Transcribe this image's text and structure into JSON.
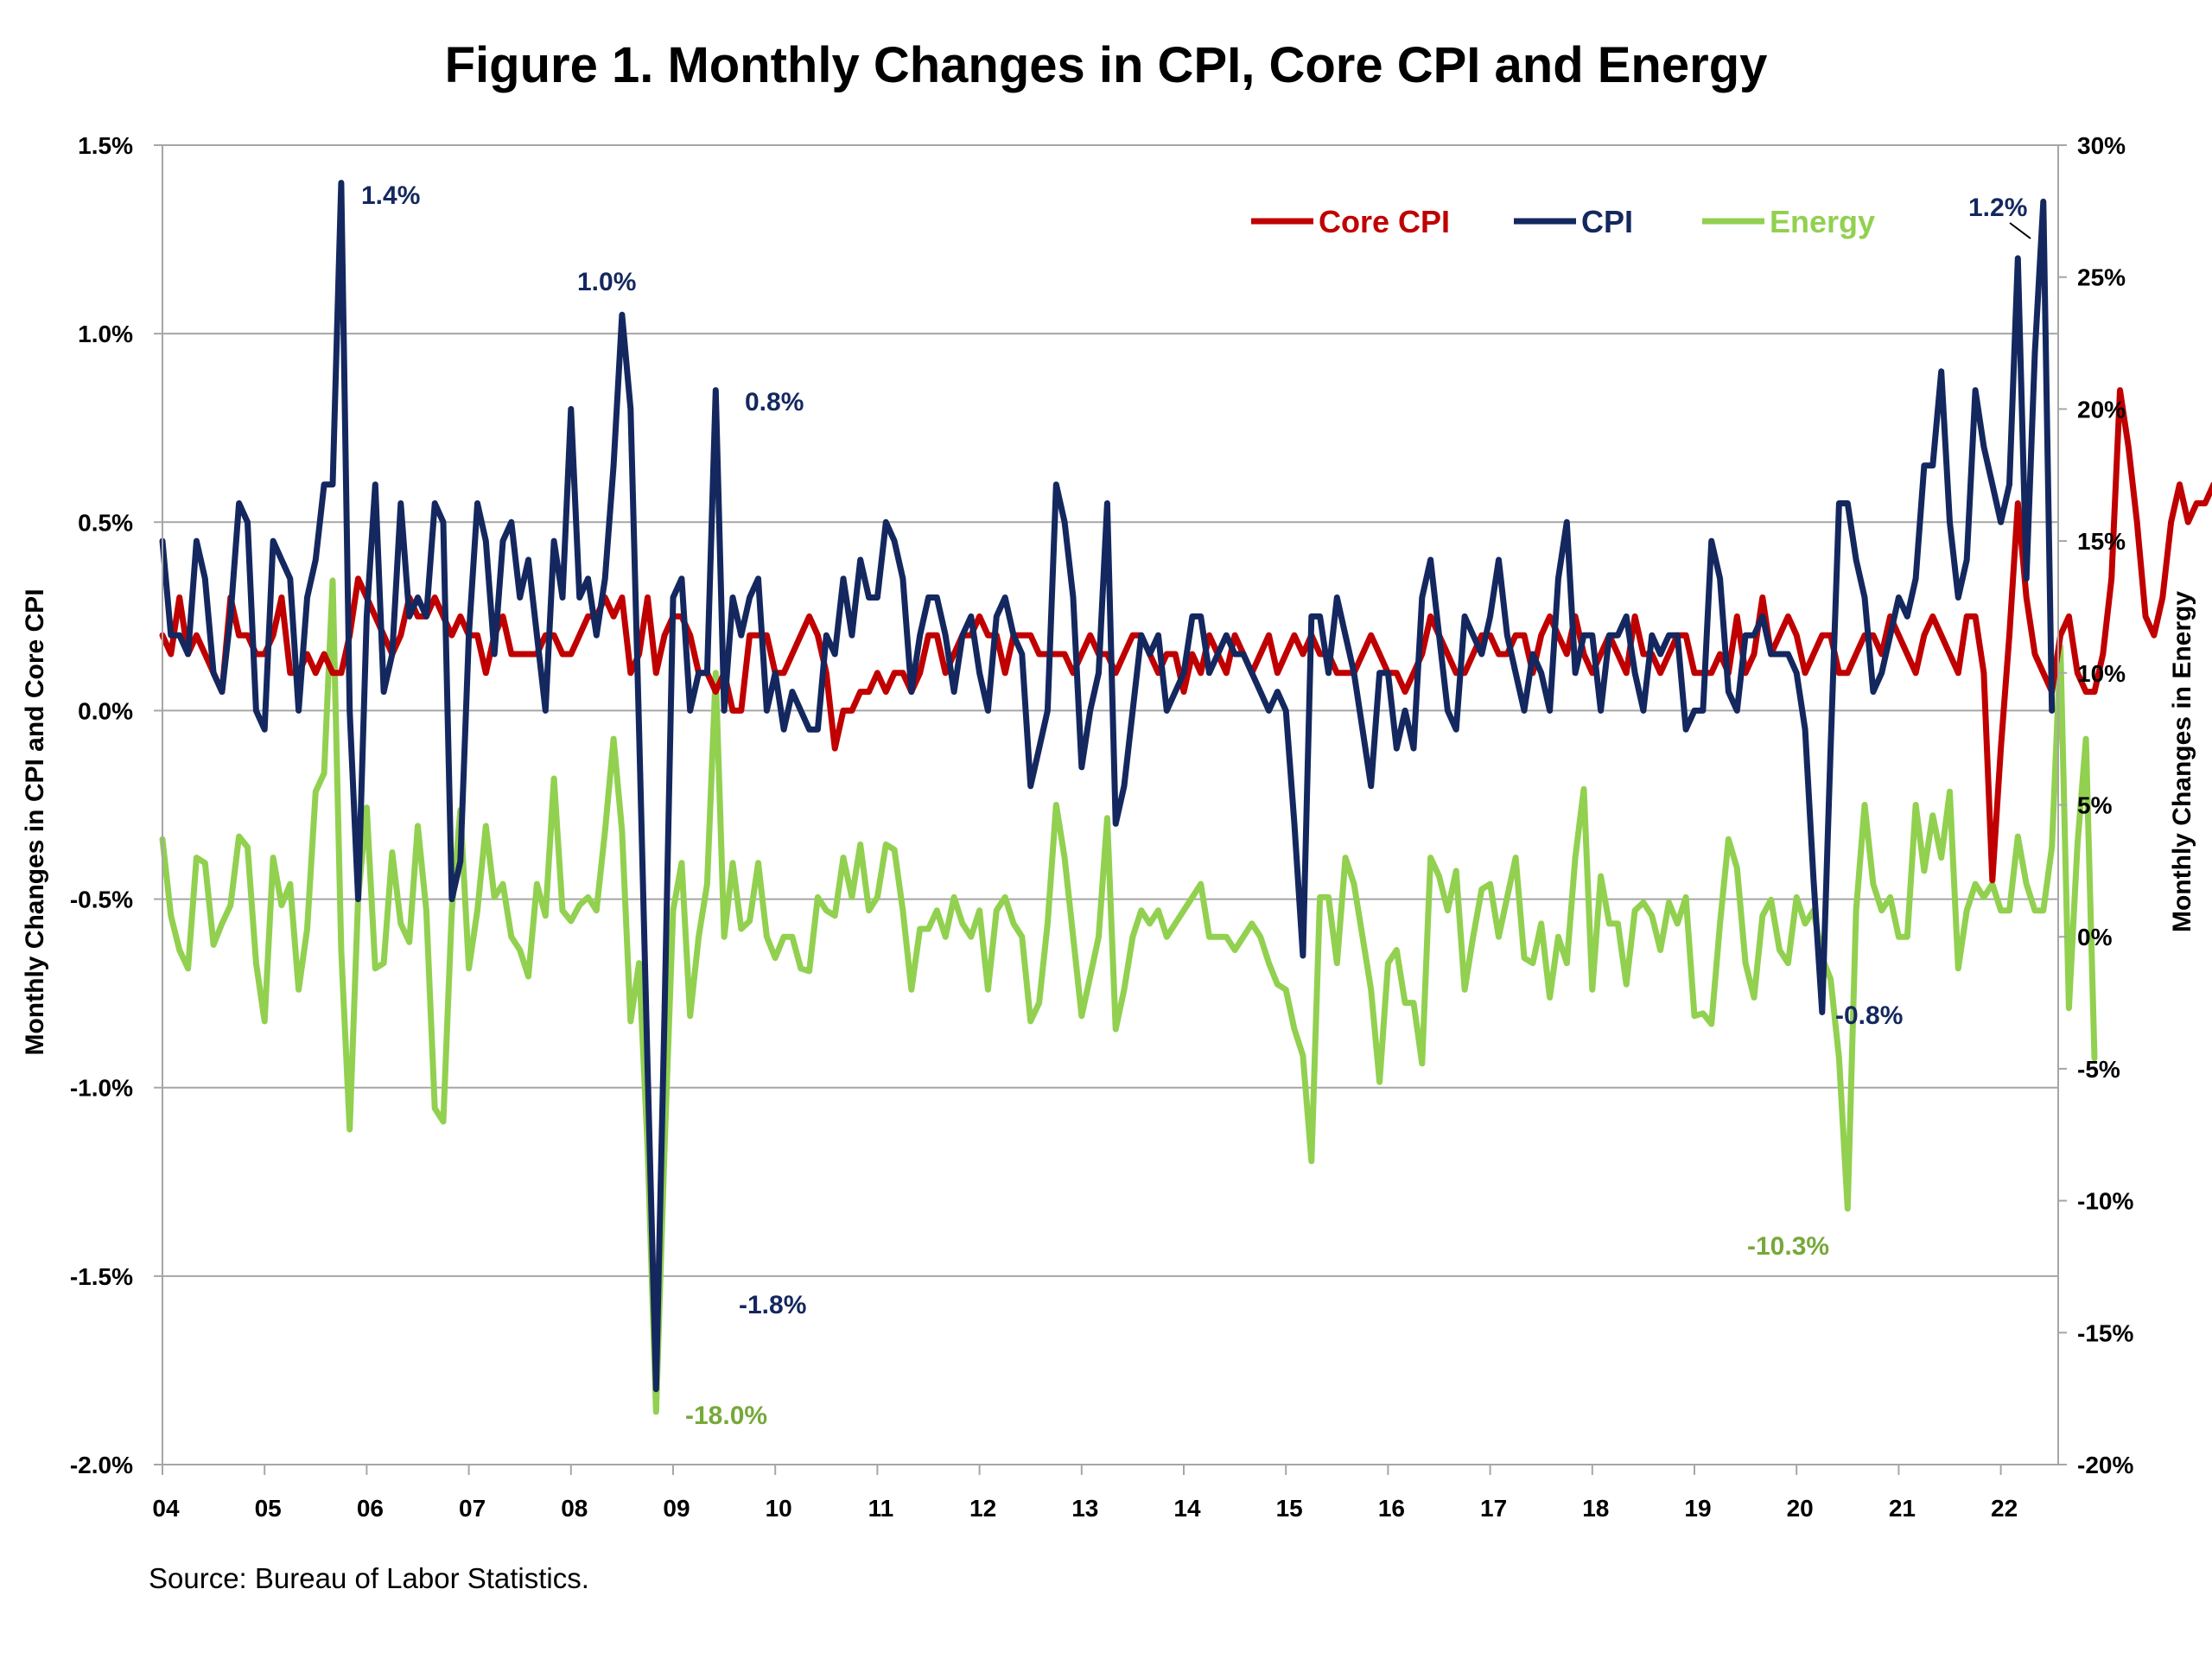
{
  "title": "Figure 1. Monthly Changes in CPI, Core CPI and Energy",
  "source": "Source: Bureau of Labor Statistics.",
  "colors": {
    "core": "#c00000",
    "cpi": "#14285f",
    "energy": "#92d050",
    "energy_label": "#77a83a",
    "grid": "#a6a6a6"
  },
  "chart_data": {
    "type": "line",
    "x_tick_labels": [
      "04",
      "05",
      "06",
      "07",
      "08",
      "09",
      "10",
      "11",
      "12",
      "13",
      "14",
      "15",
      "16",
      "17",
      "18",
      "19",
      "20",
      "21",
      "22"
    ],
    "x_range": [
      "2004-01",
      "2022-07"
    ],
    "ylabel": "Monthly Changes in CPI and Core CPI",
    "y2label": "Monthly Changes in Energy",
    "ylim": [
      -2.0,
      1.5
    ],
    "y2lim": [
      -20,
      30
    ],
    "y_ticks": [
      "1.5%",
      "1.0%",
      "0.5%",
      "0.0%",
      "-0.5%",
      "-1.0%",
      "-1.5%",
      "-2.0%"
    ],
    "y2_ticks": [
      "30%",
      "25%",
      "20%",
      "15%",
      "10%",
      "5%",
      "0%",
      "-5%",
      "-10%",
      "-15%",
      "-20%"
    ],
    "grid": "horizontal",
    "legend_position": "top-right",
    "series": [
      {
        "name": "Core CPI",
        "axis": "left",
        "values": [
          0.2,
          0.15,
          0.3,
          0.15,
          0.2,
          0.15,
          0.1,
          0.05,
          0.3,
          0.2,
          0.2,
          0.15,
          0.15,
          0.2,
          0.3,
          0.1,
          0.1,
          0.15,
          0.1,
          0.15,
          0.1,
          0.1,
          0.2,
          0.35,
          0.3,
          0.25,
          0.2,
          0.15,
          0.2,
          0.3,
          0.25,
          0.25,
          0.3,
          0.25,
          0.2,
          0.25,
          0.2,
          0.2,
          0.1,
          0.2,
          0.25,
          0.15,
          0.15,
          0.15,
          0.15,
          0.2,
          0.2,
          0.15,
          0.15,
          0.2,
          0.25,
          0.25,
          0.3,
          0.25,
          0.3,
          0.1,
          0.15,
          0.3,
          0.1,
          0.2,
          0.25,
          0.25,
          0.2,
          0.1,
          0.1,
          0.05,
          0.1,
          0.0,
          0.0,
          0.2,
          0.2,
          0.2,
          0.1,
          0.1,
          0.15,
          0.2,
          0.25,
          0.2,
          0.1,
          -0.1,
          0.0,
          0.0,
          0.05,
          0.05,
          0.1,
          0.05,
          0.1,
          0.1,
          0.05,
          0.1,
          0.2,
          0.2,
          0.1,
          0.15,
          0.2,
          0.2,
          0.25,
          0.2,
          0.2,
          0.1,
          0.2,
          0.2,
          0.2,
          0.15,
          0.15,
          0.15,
          0.15,
          0.1,
          0.15,
          0.2,
          0.15,
          0.15,
          0.1,
          0.15,
          0.2,
          0.2,
          0.15,
          0.1,
          0.15,
          0.15,
          0.05,
          0.15,
          0.1,
          0.2,
          0.15,
          0.1,
          0.2,
          0.15,
          0.1,
          0.15,
          0.2,
          0.1,
          0.15,
          0.2,
          0.15,
          0.2,
          0.15,
          0.15,
          0.1,
          0.1,
          0.1,
          0.15,
          0.2,
          0.15,
          0.1,
          0.1,
          0.05,
          0.1,
          0.15,
          0.25,
          0.2,
          0.15,
          0.1,
          0.1,
          0.15,
          0.2,
          0.2,
          0.15,
          0.15,
          0.2,
          0.2,
          0.1,
          0.2,
          0.25,
          0.2,
          0.15,
          0.25,
          0.15,
          0.1,
          0.15,
          0.2,
          0.15,
          0.1,
          0.25,
          0.15,
          0.15,
          0.1,
          0.15,
          0.2,
          0.2,
          0.1,
          0.1,
          0.1,
          0.15,
          0.1,
          0.25,
          0.1,
          0.15,
          0.3,
          0.15,
          0.2,
          0.25,
          0.2,
          0.1,
          0.15,
          0.2,
          0.2,
          0.1,
          0.1,
          0.15,
          0.2,
          0.2,
          0.15,
          0.25,
          0.2,
          0.15,
          0.1,
          0.2,
          0.25,
          0.2,
          0.15,
          0.1,
          0.25,
          0.25,
          0.1,
          -0.45,
          -0.1,
          0.2,
          0.55,
          0.3,
          0.15,
          0.1,
          0.05,
          0.2,
          0.25,
          0.1,
          0.05,
          0.05,
          0.15,
          0.35,
          0.85,
          0.7,
          0.5,
          0.25,
          0.2,
          0.3,
          0.5,
          0.6,
          0.5,
          0.55,
          0.55,
          0.6,
          0.5,
          0.3,
          0.6,
          0.65,
          0.7,
          0.3
        ]
      },
      {
        "name": "CPI",
        "axis": "left",
        "values": [
          0.45,
          0.2,
          0.2,
          0.15,
          0.45,
          0.35,
          0.1,
          0.05,
          0.25,
          0.55,
          0.5,
          0.0,
          -0.05,
          0.45,
          0.4,
          0.35,
          0.0,
          0.3,
          0.4,
          0.6,
          0.6,
          1.4,
          0.0,
          -0.5,
          0.25,
          0.6,
          0.05,
          0.15,
          0.55,
          0.25,
          0.3,
          0.25,
          0.55,
          0.5,
          -0.5,
          -0.4,
          0.2,
          0.55,
          0.45,
          0.15,
          0.45,
          0.5,
          0.3,
          0.4,
          0.2,
          0.0,
          0.45,
          0.3,
          0.8,
          0.3,
          0.35,
          0.2,
          0.35,
          0.65,
          1.05,
          0.8,
          -0.05,
          -0.95,
          -1.8,
          -0.8,
          0.3,
          0.35,
          0.0,
          0.1,
          0.1,
          0.85,
          0.0,
          0.3,
          0.2,
          0.3,
          0.35,
          0.0,
          0.1,
          -0.05,
          0.05,
          0.0,
          -0.05,
          -0.05,
          0.2,
          0.15,
          0.35,
          0.2,
          0.4,
          0.3,
          0.3,
          0.5,
          0.45,
          0.35,
          0.05,
          0.2,
          0.3,
          0.3,
          0.2,
          0.05,
          0.2,
          0.25,
          0.1,
          0.0,
          0.25,
          0.3,
          0.2,
          0.15,
          -0.2,
          -0.1,
          0.0,
          0.6,
          0.5,
          0.3,
          -0.15,
          0.0,
          0.1,
          0.55,
          -0.3,
          -0.2,
          0.0,
          0.2,
          0.15,
          0.2,
          0.0,
          0.05,
          0.1,
          0.25,
          0.25,
          0.1,
          0.15,
          0.2,
          0.15,
          0.15,
          0.1,
          0.05,
          0.0,
          0.05,
          0.0,
          -0.3,
          -0.65,
          0.25,
          0.25,
          0.1,
          0.3,
          0.2,
          0.1,
          -0.05,
          -0.2,
          0.1,
          0.1,
          -0.1,
          0.0,
          -0.1,
          0.3,
          0.4,
          0.2,
          0.0,
          -0.05,
          0.25,
          0.2,
          0.15,
          0.25,
          0.4,
          0.2,
          0.1,
          0.0,
          0.15,
          0.1,
          0.0,
          0.35,
          0.5,
          0.1,
          0.2,
          0.2,
          0.0,
          0.2,
          0.2,
          0.25,
          0.1,
          0.0,
          0.2,
          0.15,
          0.2,
          0.2,
          -0.05,
          0.0,
          0.0,
          0.45,
          0.35,
          0.05,
          0.0,
          0.2,
          0.2,
          0.25,
          0.15,
          0.15,
          0.15,
          0.1,
          -0.05,
          -0.45,
          -0.8,
          -0.1,
          0.55,
          0.55,
          0.4,
          0.3,
          0.05,
          0.1,
          0.2,
          0.3,
          0.25,
          0.35,
          0.65,
          0.65,
          0.9,
          0.5,
          0.3,
          0.4,
          0.85,
          0.7,
          0.6,
          0.5,
          0.6,
          1.2,
          0.35,
          0.95,
          1.35,
          0.0
        ]
      },
      {
        "name": "Energy",
        "axis": "right",
        "values": [
          3.7,
          0.8,
          -0.5,
          -1.2,
          3.0,
          2.8,
          -0.3,
          0.5,
          1.2,
          3.8,
          3.4,
          -1.0,
          -3.2,
          3.0,
          1.2,
          2.0,
          -2.0,
          0.3,
          5.5,
          6.2,
          13.5,
          -0.5,
          -7.3,
          1.5,
          4.9,
          -1.2,
          -1.0,
          3.2,
          0.5,
          -0.2,
          4.2,
          1.0,
          -6.5,
          -7.0,
          1.0,
          4.8,
          -1.2,
          1.0,
          4.2,
          1.5,
          2.0,
          0.0,
          -0.5,
          -1.5,
          2.0,
          0.8,
          6.0,
          1.0,
          0.6,
          1.2,
          1.5,
          1.0,
          4.0,
          7.5,
          4.0,
          -3.2,
          -1.0,
          -8.0,
          -18.0,
          -8.0,
          1.0,
          2.8,
          -3.0,
          0.0,
          2.0,
          10.0,
          0.0,
          2.8,
          0.3,
          0.6,
          2.8,
          0.0,
          -0.8,
          0.0,
          0.0,
          -1.2,
          -1.3,
          1.5,
          1.0,
          0.8,
          3.0,
          1.5,
          3.5,
          1.0,
          1.5,
          3.5,
          3.3,
          1.0,
          -2.0,
          0.3,
          0.3,
          1.0,
          0.0,
          1.5,
          0.5,
          0.0,
          1.0,
          -2.0,
          1.0,
          1.5,
          0.5,
          0.0,
          -3.2,
          -2.5,
          0.5,
          5.0,
          3.0,
          0.0,
          -3.0,
          -1.5,
          0.0,
          4.5,
          -3.5,
          -2.0,
          0.0,
          1.0,
          0.5,
          1.0,
          0.0,
          0.5,
          1.0,
          1.5,
          2.0,
          0.0,
          0.0,
          0.0,
          -0.5,
          0.0,
          0.5,
          0.0,
          -1.0,
          -1.8,
          -2.0,
          -3.5,
          -4.5,
          -8.5,
          1.5,
          1.5,
          -1.0,
          3.0,
          2.0,
          0.0,
          -2.0,
          -5.5,
          -1.0,
          -0.5,
          -2.5,
          -2.5,
          -4.8,
          3.0,
          2.3,
          1.0,
          2.5,
          -2.0,
          0.0,
          1.8,
          2.0,
          0.0,
          1.5,
          3.0,
          -0.8,
          -1.0,
          0.5,
          -2.3,
          0.0,
          -1.0,
          3.0,
          5.6,
          -2.0,
          2.3,
          0.5,
          0.5,
          -1.8,
          1.0,
          1.3,
          0.8,
          -0.5,
          1.3,
          0.5,
          1.5,
          -3.0,
          -2.9,
          -3.3,
          0.5,
          3.7,
          2.6,
          -1.0,
          -2.3,
          0.8,
          1.4,
          -0.5,
          -1.0,
          1.5,
          0.5,
          1.0,
          -0.8,
          -1.6,
          -4.6,
          -10.3,
          1.0,
          5.0,
          2.0,
          1.0,
          1.5,
          0.0,
          0.0,
          5.0,
          2.5,
          4.6,
          3.0,
          5.5,
          -1.2,
          1.0,
          2.0,
          1.5,
          2.0,
          1.0,
          1.0,
          3.8,
          2.0,
          1.0,
          1.0,
          3.4,
          11.0,
          -2.7,
          3.5,
          7.5,
          -4.6
        ]
      }
    ],
    "annotations": [
      {
        "text": "1.4%",
        "series": "CPI"
      },
      {
        "text": "1.0%",
        "series": "CPI"
      },
      {
        "text": "0.8%",
        "series": "CPI"
      },
      {
        "text": "-1.8%",
        "series": "CPI"
      },
      {
        "text": "-18.0%",
        "series": "Energy"
      },
      {
        "text": "-0.8%",
        "series": "CPI"
      },
      {
        "text": "-10.3%",
        "series": "Energy"
      },
      {
        "text": "1.2%",
        "series": "CPI"
      }
    ]
  }
}
